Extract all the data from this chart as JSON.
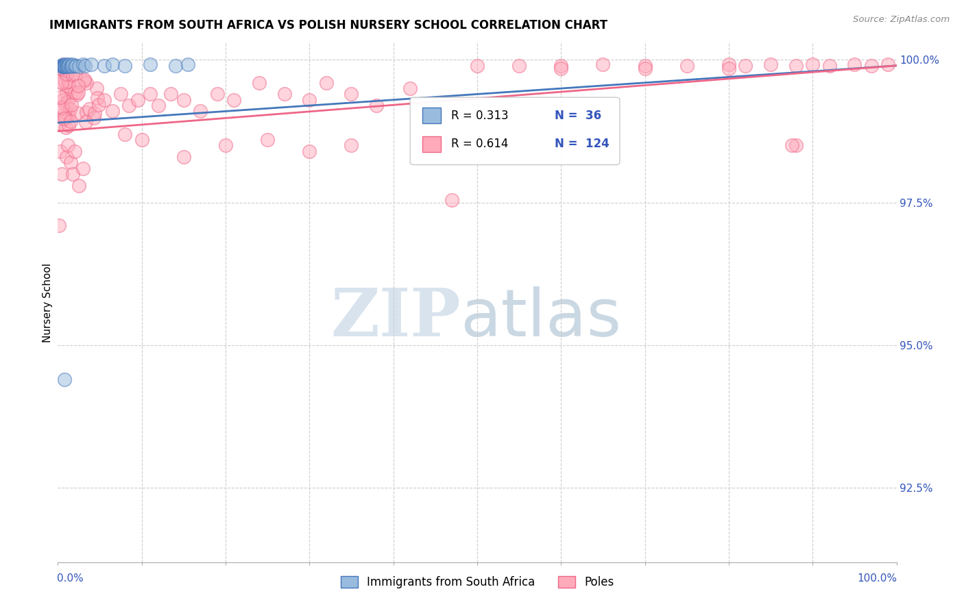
{
  "title": "IMMIGRANTS FROM SOUTH AFRICA VS POLISH NURSERY SCHOOL CORRELATION CHART",
  "source": "Source: ZipAtlas.com",
  "ylabel": "Nursery School",
  "ytick_labels": [
    "100.0%",
    "97.5%",
    "95.0%",
    "92.5%"
  ],
  "ytick_values": [
    1.0,
    0.975,
    0.95,
    0.925
  ],
  "xlim": [
    0.0,
    1.0
  ],
  "ylim": [
    0.912,
    1.003
  ],
  "legend_blue_r": "0.313",
  "legend_blue_n": "36",
  "legend_pink_r": "0.614",
  "legend_pink_n": "124",
  "legend_label_blue": "Immigrants from South Africa",
  "legend_label_pink": "Poles",
  "blue_fill_color": "#99BBDD",
  "blue_edge_color": "#4477BB",
  "pink_fill_color": "#FFAABB",
  "pink_edge_color": "#EE6688",
  "blue_line_color": "#4477BB",
  "pink_line_color": "#EE6688",
  "watermark_zip_color": "#C8D8E8",
  "watermark_atlas_color": "#A0B8CC"
}
